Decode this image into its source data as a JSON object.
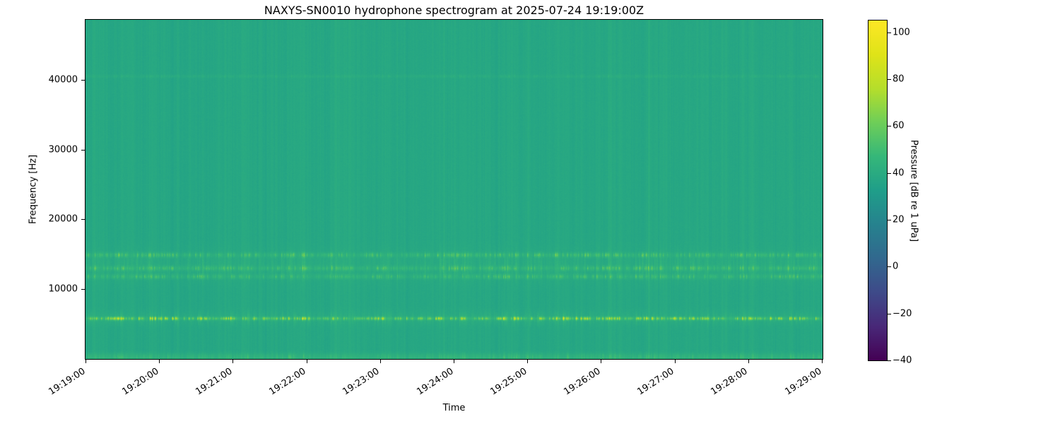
{
  "title": "NAXYS-SN0010 hydrophone spectrogram at 2025-07-24 19:19:00Z",
  "axes": {
    "xlabel": "Time",
    "ylabel": "Frequency [Hz]",
    "x_tick_labels": [
      "19:19:00",
      "19:20:00",
      "19:21:00",
      "19:22:00",
      "19:23:00",
      "19:24:00",
      "19:25:00",
      "19:26:00",
      "19:27:00",
      "19:28:00",
      "19:29:00"
    ],
    "y_tick_values": [
      10000,
      20000,
      30000,
      40000
    ],
    "y_tick_labels": [
      "10000",
      "20000",
      "30000",
      "40000"
    ]
  },
  "colorbar": {
    "label": "Pressure [dB re 1 uPa]",
    "tick_values": [
      100,
      80,
      60,
      40,
      20,
      0,
      -20,
      -40
    ],
    "tick_labels": [
      "100",
      "80",
      "60",
      "40",
      "20",
      "0",
      "−20",
      "−40"
    ],
    "vmin": -40,
    "vmax": 105,
    "colormap": "viridis",
    "stops": [
      {
        "t": 0.0,
        "c": "#440154"
      },
      {
        "t": 0.1,
        "c": "#482878"
      },
      {
        "t": 0.2,
        "c": "#3e4a89"
      },
      {
        "t": 0.3,
        "c": "#31688e"
      },
      {
        "t": 0.4,
        "c": "#26828e"
      },
      {
        "t": 0.5,
        "c": "#1f9e89"
      },
      {
        "t": 0.6,
        "c": "#35b779"
      },
      {
        "t": 0.7,
        "c": "#6ece58"
      },
      {
        "t": 0.8,
        "c": "#b5de2b"
      },
      {
        "t": 0.9,
        "c": "#dfe318"
      },
      {
        "t": 1.0,
        "c": "#fde725"
      }
    ]
  },
  "chart_data": {
    "type": "heatmap",
    "subtype": "spectrogram",
    "title": "NAXYS-SN0010 hydrophone spectrogram at 2025-07-24 19:19:00Z",
    "xlabel": "Time",
    "ylabel": "Frequency [Hz]",
    "x_range": [
      "19:19:00",
      "19:29:00"
    ],
    "x_tick_interval": "1 minute",
    "freq_range_hz": [
      0,
      48600
    ],
    "value_range_db": [
      -40,
      105
    ],
    "value_units": "dB re 1 uPa",
    "background_level_db": 38,
    "grid": false,
    "legend": "colorbar-right",
    "bands": [
      {
        "name": "tonal-5.8kHz",
        "center_hz": 5800,
        "halfwidth_hz": 260,
        "base_boost_db": 5.0,
        "speckle_db": 42,
        "speckle_prob": 0.3
      },
      {
        "name": "wash-5.8kHz",
        "center_hz": 5800,
        "halfwidth_hz": 1100,
        "base_boost_db": 1.5,
        "speckle_db": 6,
        "speckle_prob": 0.25
      },
      {
        "name": "band-14.9kHz",
        "center_hz": 14900,
        "halfwidth_hz": 380,
        "base_boost_db": 2.5,
        "speckle_db": 16,
        "speckle_prob": 0.3
      },
      {
        "name": "band-13.0kHz",
        "center_hz": 13000,
        "halfwidth_hz": 380,
        "base_boost_db": 2.5,
        "speckle_db": 14,
        "speckle_prob": 0.3
      },
      {
        "name": "band-11.8kHz",
        "center_hz": 11800,
        "halfwidth_hz": 380,
        "base_boost_db": 2.5,
        "speckle_db": 13,
        "speckle_prob": 0.3
      },
      {
        "name": "wash-13.3kHz",
        "center_hz": 13300,
        "halfwidth_hz": 2400,
        "base_boost_db": 1.2,
        "speckle_db": 5,
        "speckle_prob": 0.35
      },
      {
        "name": "low-band",
        "center_hz": 300,
        "halfwidth_hz": 600,
        "base_boost_db": 4.0,
        "speckle_db": 7,
        "speckle_prob": 0.4
      },
      {
        "name": "faint-40.5kHz",
        "center_hz": 40500,
        "halfwidth_hz": 260,
        "base_boost_db": 1.6,
        "speckle_db": 3,
        "speckle_prob": 0.25
      }
    ],
    "strong_columns": [
      {
        "pos": 0.125,
        "boost_db": 2.0
      },
      {
        "pos": 0.19,
        "boost_db": 2.2
      },
      {
        "pos": 0.333,
        "boost_db": 2.0
      },
      {
        "pos": 0.487,
        "boost_db": 2.2
      },
      {
        "pos": 0.601,
        "boost_db": 3.0
      },
      {
        "pos": 0.765,
        "boost_db": 3.5
      },
      {
        "pos": 0.845,
        "boost_db": 2.0
      }
    ],
    "column_noise_db": 2.0,
    "pixel_noise_db": 0.9
  }
}
